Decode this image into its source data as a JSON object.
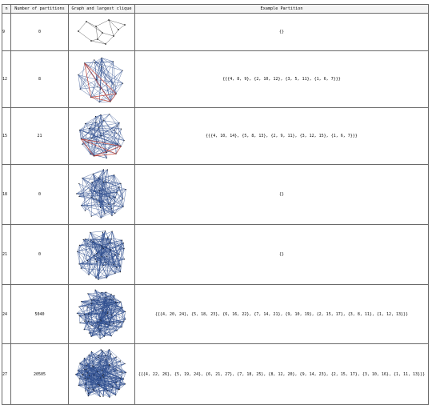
{
  "headers": {
    "n": "n",
    "count": "Number of partitions",
    "graph": "Graph and largest clique",
    "partition": "Example Partition"
  },
  "rows": [
    {
      "n": "9",
      "count": "0",
      "partition": "{}"
    },
    {
      "n": "12",
      "count": "8",
      "partition": "{{{4, 8, 9}, {2, 10, 12}, {3, 5, 11}, {1, 6, 7}}}"
    },
    {
      "n": "15",
      "count": "21",
      "partition": "{{{4, 10, 14}, {5, 8, 13}, {2, 9, 11}, {3, 12, 15}, {1, 6, 7}}}"
    },
    {
      "n": "18",
      "count": "0",
      "partition": "{}"
    },
    {
      "n": "21",
      "count": "0",
      "partition": "{}"
    },
    {
      "n": "24",
      "count": "5040",
      "partition": "{{{4, 20, 24}, {5, 18, 23}, {6, 16, 22}, {7, 14, 21}, {9, 10, 19}, {2, 15, 17}, {3, 8, 11}, {1, 12, 13}}}"
    },
    {
      "n": "27",
      "count": "20505",
      "partition": "{{{4, 22, 26}, {5, 19, 24}, {6, 21, 27}, {7, 18, 25}, {8, 12, 20}, {9, 14, 23}, {2, 15, 17}, {3, 10, 16}, {1, 11, 13}}}"
    }
  ],
  "colors": {
    "edge": "#2f4f8f",
    "clique": "#c0392b",
    "vertex": "#222222"
  }
}
